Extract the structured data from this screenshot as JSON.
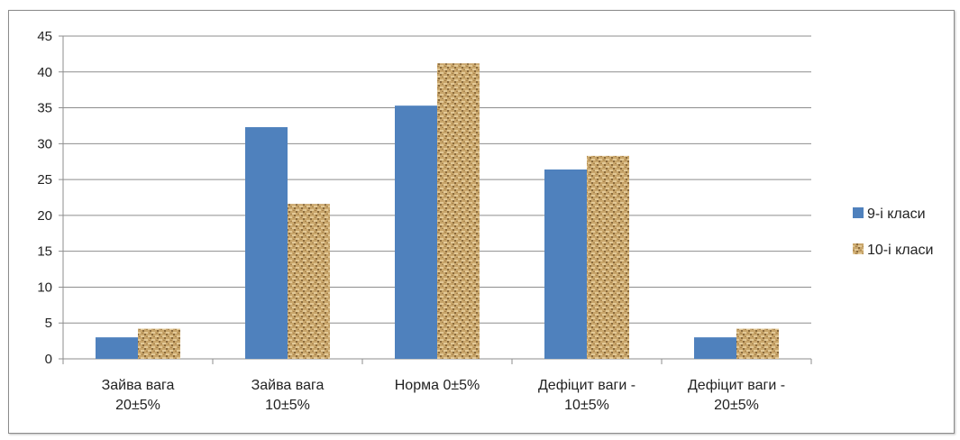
{
  "chart_data": {
    "type": "bar",
    "categories": [
      [
        "Зайва вага",
        "20±5%"
      ],
      [
        "Зайва вага",
        "10±5%"
      ],
      [
        "Норма 0±5%"
      ],
      [
        "Дефіцит ваги -",
        "10±5%"
      ],
      [
        "Дефіцит ваги -",
        "20±5%"
      ]
    ],
    "series": [
      {
        "name": "9-і класи",
        "values": [
          3,
          32.3,
          35.3,
          26.4,
          3
        ],
        "color": "#4f81bd",
        "fill": "solid"
      },
      {
        "name": "10-і класи",
        "values": [
          4.2,
          21.6,
          41.2,
          28.3,
          4.2
        ],
        "color": "#c8a46a",
        "fill": "burlap-texture"
      }
    ],
    "ylim": [
      0,
      45
    ],
    "yticks": [
      0,
      5,
      10,
      15,
      20,
      25,
      30,
      35,
      40,
      45
    ],
    "grid": true,
    "legend_position": "right",
    "title": "",
    "xlabel": "",
    "ylabel": ""
  }
}
